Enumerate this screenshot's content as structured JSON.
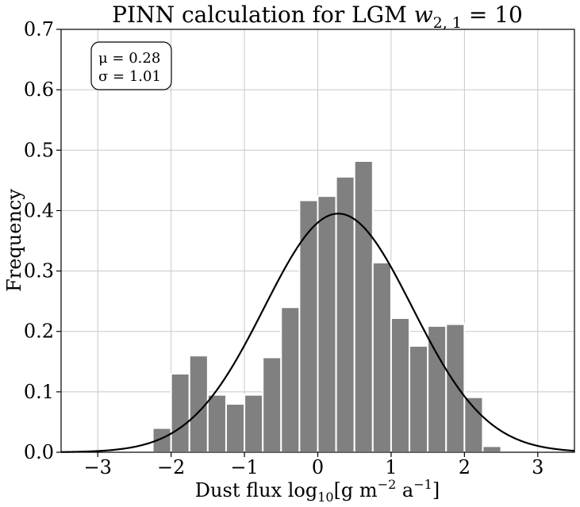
{
  "chart_data": {
    "type": "bar",
    "title_prefix": "PINN calculation for LGM ",
    "title_math": "w",
    "title_subscript": "2, 1",
    "title_suffix": " = 10",
    "xlabel_prefix": "Dust flux log",
    "xlabel_sub": "10",
    "xlabel_bracket_open": "[g m",
    "xlabel_sup1": "−2",
    "xlabel_mid": " a",
    "xlabel_sup2": "−1",
    "xlabel_close": "]",
    "ylabel": "Frequency",
    "xlim": [
      -3.5,
      3.5
    ],
    "ylim": [
      0,
      0.7
    ],
    "xticks": [
      -3,
      -2,
      -1,
      0,
      1,
      2,
      3
    ],
    "xtick_labels": [
      "−3",
      "−2",
      "−1",
      "0",
      "1",
      "2",
      "3"
    ],
    "yticks": [
      0.0,
      0.1,
      0.2,
      0.3,
      0.4,
      0.5,
      0.6,
      0.7
    ],
    "ytick_labels": [
      "0.0",
      "0.1",
      "0.2",
      "0.3",
      "0.4",
      "0.5",
      "0.6",
      "0.7"
    ],
    "grid": true,
    "bar_color": "#808080",
    "bin_edges": [
      -2.25,
      -2.0,
      -1.75,
      -1.5,
      -1.25,
      -1.0,
      -0.75,
      -0.5,
      -0.25,
      0.0,
      0.25,
      0.5,
      0.75,
      1.0,
      1.25,
      1.5,
      1.75,
      2.0,
      2.25,
      2.5
    ],
    "values": [
      0.04,
      0.13,
      0.16,
      0.095,
      0.08,
      0.095,
      0.157,
      0.24,
      0.417,
      0.424,
      0.456,
      0.482,
      0.314,
      0.222,
      0.176,
      0.209,
      0.212,
      0.091,
      0.01
    ],
    "fit": {
      "type": "gaussian",
      "mu": 0.28,
      "sigma": 1.01,
      "color": "#000000"
    },
    "stats_box": {
      "mu_label": "μ = 0.28",
      "sigma_label": "σ = 1.01",
      "position": "top-left"
    }
  }
}
